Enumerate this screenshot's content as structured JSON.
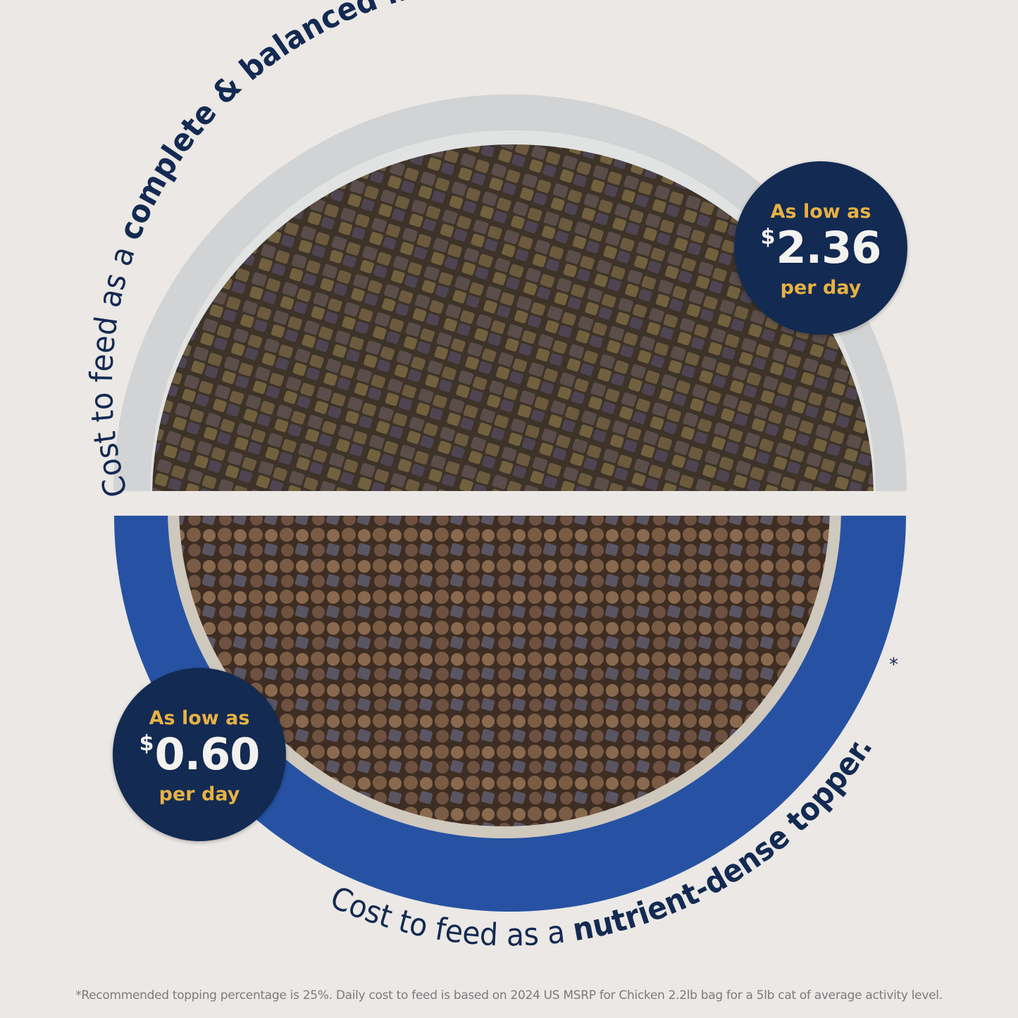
{
  "colors": {
    "background": "#ebe8e5",
    "navy": "#132a52",
    "gold": "#e7b144",
    "bowl_blue": "#2752a3",
    "bowl_gray": "#d2d3d4"
  },
  "top_caption": {
    "regular": "Cost to feed as a ",
    "bold": "complete & balanced meal."
  },
  "bottom_caption": {
    "regular": "Cost to feed as a ",
    "bold": "nutrient-dense topper.",
    "asterisk": "*"
  },
  "badge_meal": {
    "line1": "As low as",
    "currency": "$",
    "price": "2.36",
    "line3": "per day"
  },
  "badge_topper": {
    "line1": "As low as",
    "currency": "$",
    "price": "0.60",
    "line3": "per day"
  },
  "footnote": "*Recommended topping percentage is 25%. Daily cost to feed is based on 2024 US MSRP for Chicken 2.2lb bag for a 5lb cat of average activity level."
}
